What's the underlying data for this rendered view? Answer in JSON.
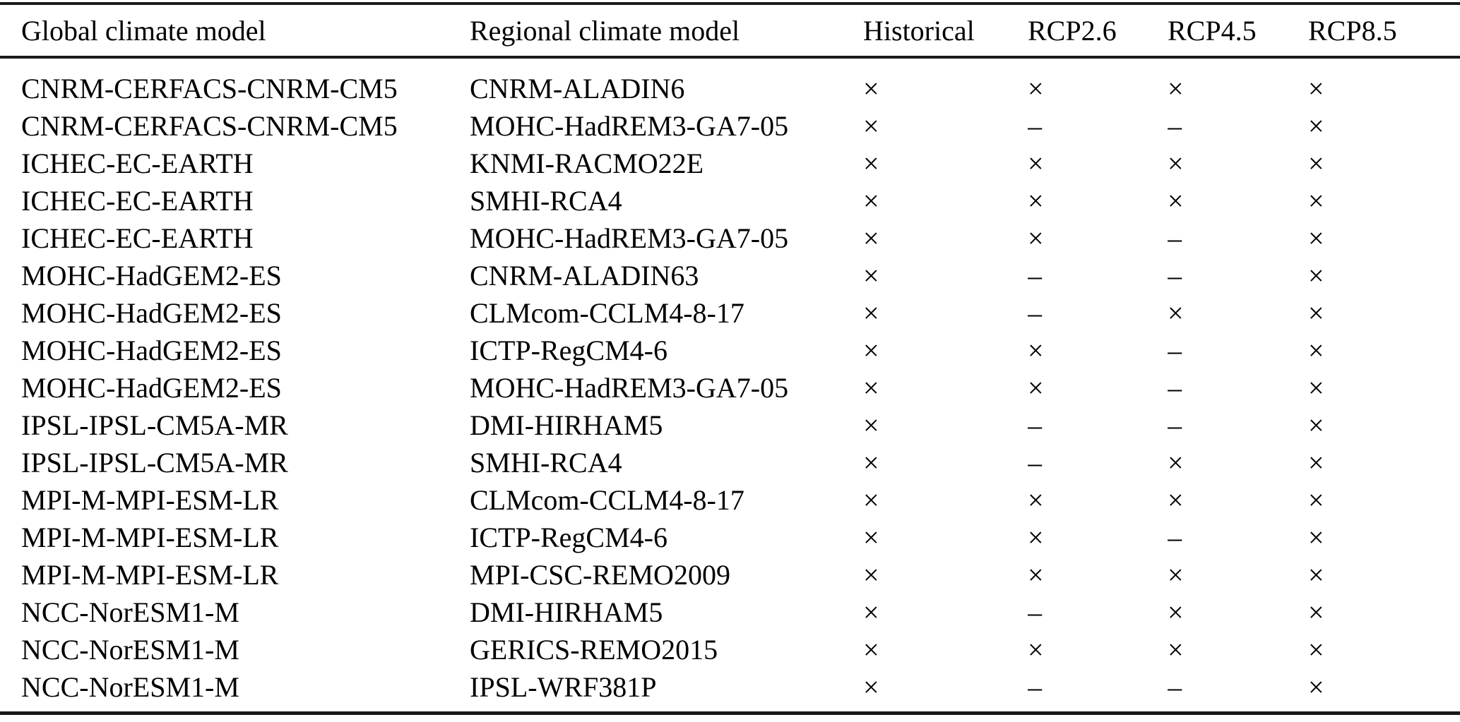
{
  "table": {
    "headers": {
      "gcm": "Global climate model",
      "rcm": "Regional climate model",
      "historical": "Historical",
      "rcp26": "RCP2.6",
      "rcp45": "RCP4.5",
      "rcp85": "RCP8.5"
    },
    "symbols": {
      "available": "×",
      "not_available": "–"
    },
    "rows": [
      [
        "CNRM-CERFACS-CNRM-CM5",
        "CNRM-ALADIN6",
        "×",
        "×",
        "×",
        "×"
      ],
      [
        "CNRM-CERFACS-CNRM-CM5",
        "MOHC-HadREM3-GA7-05",
        "×",
        "–",
        "–",
        "×"
      ],
      [
        "ICHEC-EC-EARTH",
        "KNMI-RACMO22E",
        "×",
        "×",
        "×",
        "×"
      ],
      [
        "ICHEC-EC-EARTH",
        "SMHI-RCA4",
        "×",
        "×",
        "×",
        "×"
      ],
      [
        "ICHEC-EC-EARTH",
        "MOHC-HadREM3-GA7-05",
        "×",
        "×",
        "–",
        "×"
      ],
      [
        "MOHC-HadGEM2-ES",
        "CNRM-ALADIN63",
        "×",
        "–",
        "–",
        "×"
      ],
      [
        "MOHC-HadGEM2-ES",
        "CLMcom-CCLM4-8-17",
        "×",
        "–",
        "×",
        "×"
      ],
      [
        "MOHC-HadGEM2-ES",
        "ICTP-RegCM4-6",
        "×",
        "×",
        "–",
        "×"
      ],
      [
        "MOHC-HadGEM2-ES",
        "MOHC-HadREM3-GA7-05",
        "×",
        "×",
        "–",
        "×"
      ],
      [
        "IPSL-IPSL-CM5A-MR",
        "DMI-HIRHAM5",
        "×",
        "–",
        "–",
        "×"
      ],
      [
        "IPSL-IPSL-CM5A-MR",
        "SMHI-RCA4",
        "×",
        "–",
        "×",
        "×"
      ],
      [
        "MPI-M-MPI-ESM-LR",
        "CLMcom-CCLM4-8-17",
        "×",
        "×",
        "×",
        "×"
      ],
      [
        "MPI-M-MPI-ESM-LR",
        "ICTP-RegCM4-6",
        "×",
        "×",
        "–",
        "×"
      ],
      [
        "MPI-M-MPI-ESM-LR",
        "MPI-CSC-REMO2009",
        "×",
        "×",
        "×",
        "×"
      ],
      [
        "NCC-NorESM1-M",
        "DMI-HIRHAM5",
        "×",
        "–",
        "×",
        "×"
      ],
      [
        "NCC-NorESM1-M",
        "GERICS-REMO2015",
        "×",
        "×",
        "×",
        "×"
      ],
      [
        "NCC-NorESM1-M",
        "IPSL-WRF381P",
        "×",
        "–",
        "–",
        "×"
      ]
    ]
  },
  "colors": {
    "text": "#000000",
    "rule": "#1a1a1a",
    "background": "#ffffff"
  }
}
